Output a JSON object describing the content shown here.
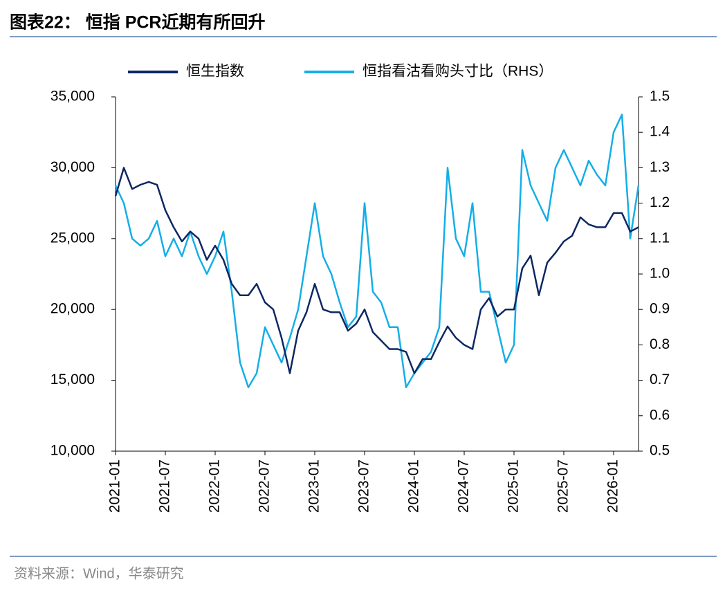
{
  "title": "图表22：  恒指 PCR近期有所回升",
  "source": "资料来源：Wind，华泰研究",
  "chart_data": {
    "type": "line",
    "x": [
      "2021-01",
      "2021-02",
      "2021-03",
      "2021-04",
      "2021-05",
      "2021-06",
      "2021-07",
      "2021-08",
      "2021-09",
      "2021-10",
      "2021-11",
      "2021-12",
      "2022-01",
      "2022-02",
      "2022-03",
      "2022-04",
      "2022-05",
      "2022-06",
      "2022-07",
      "2022-08",
      "2022-09",
      "2022-10",
      "2022-11",
      "2022-12",
      "2023-01",
      "2023-02",
      "2023-03",
      "2023-04",
      "2023-05",
      "2023-06",
      "2023-07",
      "2023-08",
      "2023-09",
      "2023-10",
      "2023-11",
      "2023-12",
      "2024-01",
      "2024-02",
      "2024-03",
      "2024-04",
      "2024-05",
      "2024-06",
      "2024-07",
      "2024-08",
      "2024-09",
      "2024-10",
      "2024-11",
      "2024-12",
      "2025-01",
      "2025-02",
      "2025-03",
      "2025-04",
      "2025-05",
      "2025-06",
      "2025-07",
      "2025-08",
      "2025-09",
      "2025-10",
      "2025-11",
      "2025-12",
      "2026-01",
      "2026-02",
      "2026-03",
      "2026-04"
    ],
    "series": [
      {
        "name": "恒生指数",
        "color": "#0d2763",
        "values": [
          28000,
          30000,
          28500,
          28800,
          29000,
          28800,
          27000,
          25800,
          24800,
          25500,
          25000,
          23500,
          24500,
          23500,
          21800,
          21000,
          21000,
          21800,
          20500,
          20000,
          18000,
          15500,
          18500,
          19800,
          21800,
          20000,
          19800,
          19800,
          18500,
          19000,
          20000,
          18400,
          17800,
          17200,
          17200,
          17000,
          15500,
          16500,
          16500,
          17700,
          18800,
          18000,
          17500,
          17200,
          20000,
          20800,
          19500,
          20000,
          20000,
          22900,
          23800,
          21000,
          23300,
          24000,
          24800,
          25200,
          26500,
          26000,
          25800,
          25800,
          26800,
          26800,
          25500,
          25800
        ]
      },
      {
        "name": "恒指看沽看购头寸比（RHS）",
        "color": "#14aee8",
        "axis": "y2",
        "values": [
          1.25,
          1.2,
          1.1,
          1.08,
          1.1,
          1.15,
          1.05,
          1.1,
          1.05,
          1.12,
          1.05,
          1.0,
          1.05,
          1.12,
          0.95,
          0.75,
          0.68,
          0.72,
          0.85,
          0.8,
          0.75,
          0.82,
          0.9,
          1.05,
          1.2,
          1.05,
          1.0,
          0.92,
          0.85,
          0.88,
          1.2,
          0.95,
          0.92,
          0.85,
          0.85,
          0.68,
          0.72,
          0.75,
          0.78,
          0.85,
          1.3,
          1.1,
          1.05,
          1.2,
          0.95,
          0.95,
          0.85,
          0.75,
          0.8,
          1.35,
          1.25,
          1.2,
          1.15,
          1.3,
          1.35,
          1.3,
          1.25,
          1.32,
          1.28,
          1.25,
          1.4,
          1.45,
          1.1,
          1.25
        ]
      }
    ],
    "xlim": [
      "2021-01",
      "2026-04"
    ],
    "xticks": [
      "2021-01",
      "2021-07",
      "2022-01",
      "2022-07",
      "2023-01",
      "2023-07",
      "2024-01",
      "2024-07",
      "2025-01",
      "2025-07",
      "2026-01"
    ],
    "ylim": [
      10000,
      35000
    ],
    "yticks": [
      {
        "value": 10000,
        "label": "10,000"
      },
      {
        "value": 15000,
        "label": "15,000"
      },
      {
        "value": 20000,
        "label": "20,000"
      },
      {
        "value": 25000,
        "label": "25,000"
      },
      {
        "value": 30000,
        "label": "30,000"
      },
      {
        "value": 35000,
        "label": "35,000"
      }
    ],
    "y2lim": [
      0.5,
      1.5
    ],
    "y2ticks": [
      0.5,
      0.6,
      0.7,
      0.8,
      0.9,
      {
        "value": 1.0,
        "label": "1.0"
      },
      1.1,
      1.2,
      1.3,
      1.4,
      1.5
    ],
    "legend": "top"
  }
}
